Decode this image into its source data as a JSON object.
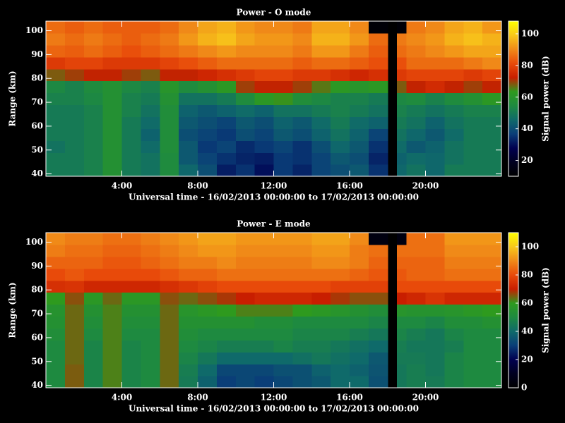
{
  "chart_data": [
    {
      "type": "heatmap",
      "title": "Power - O mode",
      "xlabel": "Universal time - 16/02/2013 00:00:00 to 17/02/2013 00:00:00",
      "ylabel": "Range (km)",
      "colorbar_label": "Signal power (dB)",
      "xlim": [
        0,
        24
      ],
      "ylim": [
        39,
        104
      ],
      "xticks": [
        {
          "value": 4,
          "label": "4:00"
        },
        {
          "value": 8,
          "label": "8:00"
        },
        {
          "value": 12,
          "label": "12:00"
        },
        {
          "value": 16,
          "label": "16:00"
        },
        {
          "value": 20,
          "label": "20:00"
        }
      ],
      "yticks": [
        40,
        50,
        60,
        70,
        80,
        90,
        100
      ],
      "clim": [
        10,
        108
      ],
      "cticks": [
        20,
        40,
        60,
        80,
        100
      ],
      "colorscale": [
        "#000000",
        "#000020",
        "#000050",
        "#0a3e78",
        "#0f6a6a",
        "#1e8a40",
        "#2e9a1e",
        "#c81e00",
        "#e84a0a",
        "#f08a18",
        "#f8c81a",
        "#ffff00"
      ],
      "xbins": [
        0,
        1,
        2,
        3,
        4,
        5,
        6,
        7,
        8,
        9,
        10,
        11,
        12,
        13,
        14,
        15,
        16,
        17,
        18,
        18.5,
        19,
        20,
        21,
        22,
        23,
        24
      ],
      "ybins": [
        39,
        44,
        49,
        54,
        59,
        64,
        69,
        74,
        79,
        84,
        89,
        94,
        99,
        104
      ],
      "z": [
        [
          50,
          50,
          52,
          58,
          50,
          48,
          55,
          45,
          40,
          32,
          35,
          30,
          36,
          33,
          38,
          40,
          42,
          35,
          null,
          45,
          48,
          45,
          50,
          50,
          50
        ],
        [
          50,
          50,
          52,
          58,
          50,
          48,
          55,
          42,
          38,
          35,
          33,
          32,
          36,
          35,
          38,
          42,
          40,
          33,
          null,
          44,
          46,
          45,
          48,
          50,
          50
        ],
        [
          48,
          50,
          52,
          58,
          50,
          46,
          56,
          42,
          36,
          38,
          34,
          36,
          38,
          35,
          40,
          45,
          42,
          35,
          null,
          46,
          42,
          44,
          48,
          50,
          50
        ],
        [
          50,
          50,
          52,
          58,
          50,
          44,
          56,
          40,
          38,
          36,
          40,
          38,
          42,
          40,
          44,
          48,
          44,
          38,
          null,
          48,
          45,
          42,
          46,
          50,
          50
        ],
        [
          50,
          50,
          52,
          58,
          50,
          46,
          56,
          42,
          40,
          38,
          42,
          40,
          44,
          42,
          46,
          50,
          46,
          44,
          null,
          50,
          48,
          44,
          48,
          50,
          50
        ],
        [
          50,
          50,
          52,
          58,
          52,
          48,
          56,
          44,
          42,
          44,
          46,
          44,
          48,
          48,
          50,
          52,
          50,
          48,
          null,
          52,
          50,
          48,
          50,
          52,
          52
        ],
        [
          52,
          52,
          54,
          58,
          52,
          50,
          58,
          48,
          48,
          50,
          55,
          62,
          64,
          56,
          54,
          52,
          52,
          50,
          null,
          54,
          55,
          52,
          55,
          58,
          62
        ],
        [
          54,
          52,
          55,
          58,
          54,
          52,
          60,
          55,
          58,
          62,
          70,
          72,
          72,
          70,
          66,
          62,
          60,
          62,
          null,
          68,
          72,
          75,
          72,
          70,
          72
        ],
        [
          68,
          70,
          72,
          72,
          70,
          68,
          72,
          72,
          74,
          76,
          78,
          80,
          80,
          78,
          78,
          76,
          74,
          76,
          null,
          78,
          80,
          80,
          80,
          78,
          80
        ],
        [
          78,
          80,
          80,
          78,
          78,
          78,
          80,
          82,
          84,
          86,
          86,
          86,
          86,
          84,
          86,
          86,
          84,
          82,
          null,
          82,
          86,
          86,
          86,
          88,
          90
        ],
        [
          85,
          84,
          86,
          84,
          82,
          84,
          86,
          88,
          90,
          92,
          90,
          90,
          90,
          88,
          92,
          92,
          88,
          84,
          null,
          86,
          88,
          90,
          92,
          94,
          94
        ],
        [
          88,
          86,
          88,
          86,
          84,
          86,
          88,
          92,
          96,
          98,
          94,
          92,
          92,
          90,
          96,
          96,
          92,
          86,
          null,
          88,
          90,
          92,
          96,
          98,
          96
        ],
        [
          86,
          84,
          86,
          84,
          84,
          84,
          86,
          90,
          94,
          96,
          92,
          90,
          90,
          88,
          94,
          94,
          90,
          12,
          null,
          12,
          88,
          90,
          94,
          96,
          92
        ]
      ]
    },
    {
      "type": "heatmap",
      "title": "Power - E mode",
      "xlabel": "Universal time - 16/02/2013 00:00:00 to 17/02/2013 00:00:00",
      "ylabel": "Range (km)",
      "colorbar_label": "Signal power (dB)",
      "xlim": [
        0,
        24
      ],
      "ylim": [
        39,
        104
      ],
      "xticks": [
        {
          "value": 4,
          "label": "4:00"
        },
        {
          "value": 8,
          "label": "8:00"
        },
        {
          "value": 12,
          "label": "12:00"
        },
        {
          "value": 16,
          "label": "16:00"
        },
        {
          "value": 20,
          "label": "20:00"
        }
      ],
      "yticks": [
        40,
        50,
        60,
        70,
        80,
        90,
        100
      ],
      "clim": [
        0,
        110
      ],
      "cticks": [
        0,
        20,
        40,
        60,
        80,
        100
      ],
      "colorscale": [
        "#000000",
        "#000020",
        "#000050",
        "#0a3e78",
        "#0f6a6a",
        "#1e8a40",
        "#2e9a1e",
        "#c81e00",
        "#e84a0a",
        "#f08a18",
        "#f8c81a",
        "#ffff00"
      ],
      "xbins": [
        0,
        1,
        2,
        3,
        4,
        5,
        6,
        7,
        8,
        9,
        10,
        11,
        12,
        13,
        14,
        15,
        16,
        17,
        18,
        18.5,
        19,
        20,
        21,
        22,
        23,
        24
      ],
      "ybins": [
        39,
        44,
        49,
        54,
        59,
        64,
        69,
        74,
        79,
        84,
        89,
        94,
        99,
        104
      ],
      "z": [
        [
          50,
          65,
          48,
          62,
          48,
          50,
          64,
          45,
          38,
          30,
          32,
          30,
          32,
          34,
          36,
          40,
          40,
          34,
          null,
          44,
          46,
          45,
          48,
          50,
          50
        ],
        [
          50,
          65,
          48,
          62,
          48,
          50,
          64,
          46,
          40,
          32,
          32,
          32,
          34,
          34,
          38,
          40,
          38,
          35,
          null,
          44,
          46,
          44,
          48,
          50,
          50
        ],
        [
          50,
          64,
          48,
          62,
          48,
          50,
          64,
          48,
          44,
          40,
          40,
          40,
          40,
          42,
          44,
          42,
          40,
          36,
          null,
          45,
          45,
          44,
          48,
          50,
          50
        ],
        [
          50,
          64,
          48,
          62,
          48,
          50,
          64,
          50,
          48,
          46,
          46,
          46,
          48,
          46,
          46,
          44,
          42,
          40,
          null,
          46,
          44,
          44,
          46,
          50,
          50
        ],
        [
          52,
          64,
          50,
          62,
          50,
          50,
          64,
          52,
          50,
          50,
          50,
          50,
          50,
          48,
          48,
          48,
          46,
          44,
          null,
          48,
          46,
          44,
          48,
          50,
          50
        ],
        [
          54,
          64,
          52,
          62,
          52,
          52,
          64,
          54,
          54,
          54,
          54,
          52,
          52,
          50,
          50,
          50,
          50,
          48,
          null,
          50,
          50,
          48,
          52,
          52,
          54
        ],
        [
          55,
          64,
          54,
          62,
          54,
          54,
          64,
          56,
          58,
          60,
          62,
          62,
          62,
          60,
          58,
          56,
          54,
          52,
          null,
          56,
          55,
          55,
          56,
          58,
          60
        ],
        [
          60,
          66,
          58,
          64,
          58,
          58,
          66,
          64,
          66,
          68,
          70,
          72,
          72,
          72,
          70,
          68,
          66,
          66,
          null,
          70,
          72,
          75,
          72,
          72,
          72
        ],
        [
          74,
          75,
          72,
          72,
          72,
          72,
          74,
          76,
          78,
          80,
          80,
          80,
          80,
          80,
          80,
          78,
          78,
          78,
          null,
          80,
          80,
          80,
          80,
          80,
          80
        ],
        [
          80,
          82,
          80,
          80,
          80,
          80,
          82,
          84,
          84,
          86,
          86,
          86,
          86,
          86,
          86,
          86,
          84,
          82,
          null,
          82,
          84,
          84,
          86,
          86,
          86
        ],
        [
          84,
          84,
          84,
          82,
          82,
          84,
          86,
          88,
          88,
          90,
          88,
          88,
          88,
          88,
          90,
          90,
          88,
          84,
          null,
          84,
          84,
          84,
          88,
          88,
          88
        ],
        [
          88,
          86,
          86,
          84,
          84,
          86,
          88,
          90,
          92,
          92,
          90,
          90,
          90,
          90,
          92,
          92,
          88,
          86,
          null,
          86,
          86,
          86,
          90,
          90,
          90
        ],
        [
          90,
          88,
          88,
          86,
          86,
          88,
          90,
          92,
          94,
          94,
          92,
          92,
          92,
          92,
          94,
          94,
          90,
          5,
          null,
          5,
          86,
          86,
          92,
          92,
          92
        ]
      ]
    }
  ]
}
